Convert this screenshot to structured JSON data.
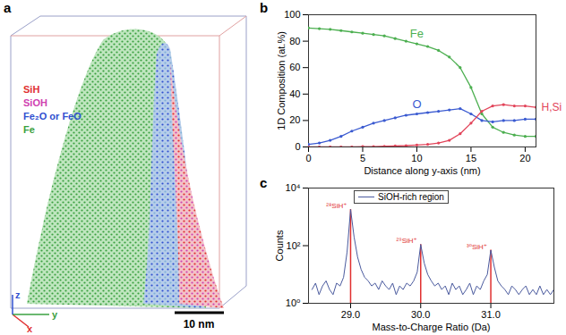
{
  "chart_data": [
    {
      "panel": "b",
      "type": "line",
      "x_label": "Distance along y-axis (nm)",
      "y_label": "1D Composition (at.%)",
      "x": [
        0,
        1,
        2,
        3,
        4,
        5,
        6,
        7,
        8,
        9,
        10,
        11,
        12,
        13,
        14,
        15,
        16,
        17,
        18,
        19,
        20,
        21
      ],
      "series": [
        {
          "name": "Fe",
          "color": "#4caf50",
          "values": [
            90,
            89.5,
            89,
            88,
            87,
            86,
            85,
            84,
            82,
            80,
            78,
            76,
            73,
            68,
            60,
            45,
            25,
            15,
            11,
            9,
            8,
            8
          ]
        },
        {
          "name": "O",
          "color": "#3b5bd1",
          "values": [
            2,
            3,
            5,
            8,
            12,
            15,
            18,
            20,
            22,
            24,
            25,
            26,
            27,
            28,
            29,
            25,
            20,
            19,
            20,
            20,
            21,
            21
          ]
        },
        {
          "name": "H,Si",
          "color": "#e2455a",
          "values": [
            0,
            0,
            0,
            0,
            0,
            0.2,
            0.3,
            0.5,
            0.7,
            1,
            1.5,
            2,
            3,
            5,
            10,
            18,
            27,
            31,
            32,
            31,
            31,
            30
          ]
        }
      ],
      "xlim": [
        0,
        21
      ],
      "xticks": [
        0,
        5,
        10,
        15,
        20
      ],
      "ylim": [
        0,
        100
      ],
      "yticks": [
        0,
        20,
        40,
        60,
        80,
        100
      ],
      "marker": "dot"
    },
    {
      "panel": "c",
      "type": "line",
      "log": "y",
      "x_label": "Mass-to-Charge Ratio (Da)",
      "y_label": "Counts",
      "legend": "top",
      "x": [
        28.45,
        28.5,
        28.55,
        28.6,
        28.65,
        28.7,
        28.75,
        28.8,
        28.85,
        28.9,
        28.95,
        29.0,
        29.05,
        29.1,
        29.15,
        29.2,
        29.25,
        29.3,
        29.35,
        29.4,
        29.45,
        29.5,
        29.55,
        29.6,
        29.65,
        29.7,
        29.75,
        29.8,
        29.85,
        29.9,
        29.95,
        30.0,
        30.05,
        30.1,
        30.15,
        30.2,
        30.25,
        30.3,
        30.35,
        30.4,
        30.45,
        30.5,
        30.55,
        30.6,
        30.65,
        30.7,
        30.75,
        30.8,
        30.85,
        30.9,
        30.95,
        31.0,
        31.05,
        31.1,
        31.15,
        31.2,
        31.25,
        31.3,
        31.35,
        31.4,
        31.45,
        31.5,
        31.55,
        31.6,
        31.65,
        31.7,
        31.75,
        31.8,
        31.85,
        31.9
      ],
      "series": [
        {
          "name": "SiOH-rich region",
          "color": "#4a5a9e",
          "values": [
            3,
            5,
            2,
            4,
            6,
            3,
            2,
            5,
            4,
            8,
            60,
            1800,
            200,
            40,
            15,
            8,
            6,
            4,
            5,
            3,
            6,
            4,
            3,
            5,
            2,
            4,
            3,
            5,
            4,
            6,
            12,
            110,
            25,
            10,
            6,
            4,
            5,
            3,
            4,
            2,
            5,
            3,
            4,
            2,
            3,
            5,
            2,
            4,
            3,
            6,
            10,
            70,
            18,
            6,
            4,
            3,
            2,
            4,
            3,
            2,
            3,
            4,
            2,
            3,
            2,
            4,
            2,
            3,
            2,
            3
          ]
        }
      ],
      "peaks": [
        {
          "x": 29.0,
          "value": 1800,
          "label": "²⁸SiH⁺",
          "color": "#e03030"
        },
        {
          "x": 30.0,
          "value": 110,
          "label": "²⁹SiH⁺",
          "color": "#e03030"
        },
        {
          "x": 31.0,
          "value": 70,
          "label": "³⁰SiH⁺",
          "color": "#e03030"
        }
      ],
      "xlim": [
        28.4,
        31.9
      ],
      "xticks": [
        29,
        30,
        31
      ],
      "ylim": [
        1,
        10000
      ],
      "yticks": [
        {
          "value": 1,
          "label": "10⁰"
        },
        {
          "value": 100,
          "label": "10²"
        },
        {
          "value": 10000,
          "label": "10⁴"
        }
      ]
    }
  ],
  "reconstruction": {
    "panel": "a",
    "legend": [
      {
        "name": "SiH",
        "color": "#e03030"
      },
      {
        "name": "SiOH",
        "color": "#d040b0"
      },
      {
        "name": "Fe₂O or FeO",
        "color": "#3050d0"
      },
      {
        "name": "Fe",
        "color": "#3aa040"
      }
    ],
    "axes": [
      {
        "name": "x",
        "color": "#e03030"
      },
      {
        "name": "y",
        "color": "#3aa040"
      },
      {
        "name": "z",
        "color": "#3050d0"
      }
    ],
    "scale_bar": "10 nm"
  }
}
